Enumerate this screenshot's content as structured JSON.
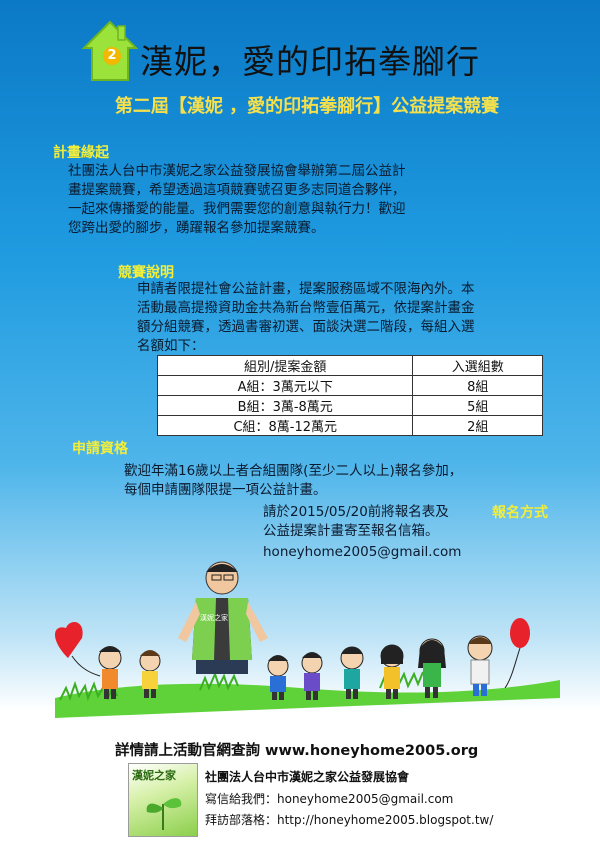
{
  "header": {
    "logo_badge": "2",
    "title": "漢妮，愛的印拓拳腳行",
    "subtitle": "第二屆【漢妮 ，愛的印拓拳腳行】公益提案競賽"
  },
  "sections": {
    "plan_origin": {
      "heading": "計畫緣起",
      "lines": [
        "社團法人台中市漢妮之家公益發展協會舉辦第二屆公益計",
        "畫提案競賽，希望透過這項競賽號召更多志同道合夥伴，",
        "一起來傳播愛的能量。我們需要您的創意與執行力！歡迎",
        "您跨出愛的腳步，踴躍報名參加提案競賽。"
      ]
    },
    "competition": {
      "heading": "競賽說明",
      "lines": [
        "申請者限提社會公益計畫，提案服務區域不限海內外。本",
        "活動最高提撥資助金共為新台幣壹佰萬元，依提案計畫金",
        "額分組競賽，透過書審初選、面談決選二階段，每組入選",
        "名額如下："
      ],
      "table": {
        "headers": [
          "組別/提案金額",
          "入選組數"
        ],
        "rows": [
          [
            "A組：3萬元以下",
            "8組"
          ],
          [
            "B組：3萬-8萬元",
            "5組"
          ],
          [
            "C組：8萬-12萬元",
            "2組"
          ]
        ]
      }
    },
    "eligibility": {
      "heading": "申請資格",
      "lines": [
        "歡迎年滿16歲以上者合組團隊(至少二人以上)報名參加，",
        "每個申請團隊限提一項公益計畫。"
      ]
    },
    "registration": {
      "heading": "報名方式",
      "lines": [
        "請於2015/05/20前將報名表及",
        "公益提案計畫寄至報名信箱。"
      ],
      "email": "honeyhome2005@gmail.com"
    }
  },
  "illustration": {
    "vest_text": "漢妮之家"
  },
  "footer": {
    "website_line": "詳情請上活動官網查詢 www.honeyhome2005.org",
    "org_logo_text": "漢妮之家",
    "org_name": "社團法人台中市漢妮之家公益發展協會",
    "email_line": "寫信給我們：honeyhome2005@gmail.com",
    "blog_line": "拜訪部落格：http://honeyhome2005.blogspot.tw/"
  },
  "colors": {
    "heading_yellow": "#f2ee3a",
    "background_blue": "#1f9be0",
    "grass_green": "#5fd23a"
  }
}
